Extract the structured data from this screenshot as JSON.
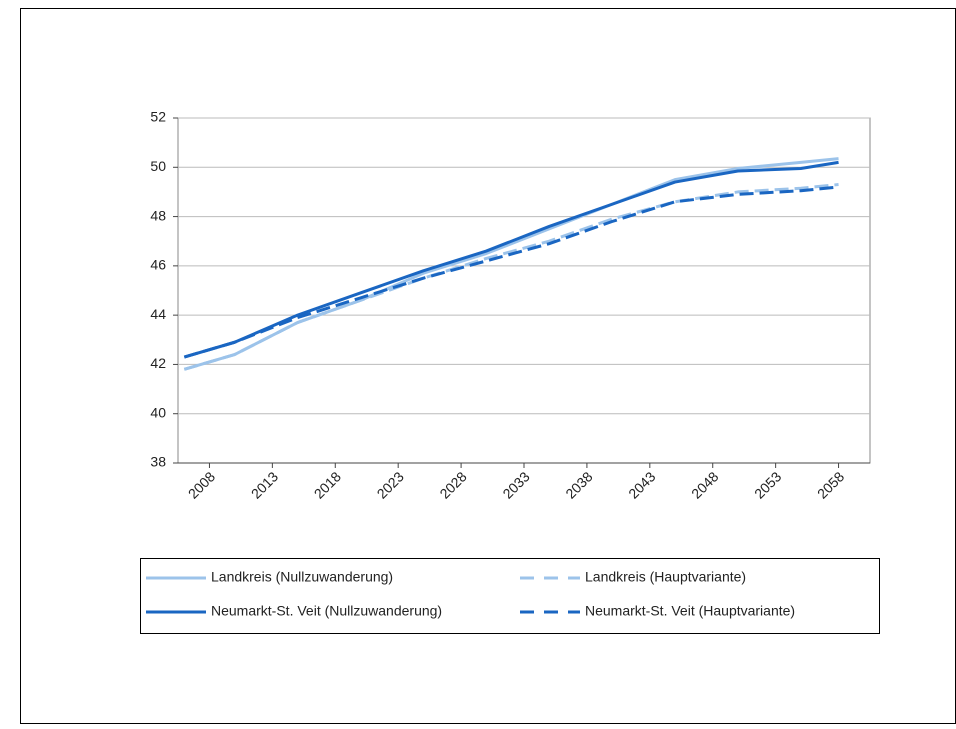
{
  "chart_data": {
    "type": "line",
    "x": [
      2006,
      2010,
      2015,
      2020,
      2025,
      2030,
      2035,
      2040,
      2045,
      2050,
      2055,
      2058
    ],
    "series": [
      {
        "name": "Landkreis (Nullzuwanderung)",
        "color": "#9cc3ea",
        "dash": false,
        "values": [
          41.8,
          42.4,
          43.7,
          44.6,
          45.7,
          46.5,
          47.5,
          48.5,
          49.5,
          49.95,
          50.2,
          50.35
        ]
      },
      {
        "name": "Landkreis (Hauptvariante)",
        "color": "#9cc3ea",
        "dash": true,
        "values": [
          41.8,
          42.4,
          43.7,
          44.6,
          45.5,
          46.3,
          47.0,
          47.9,
          48.6,
          49.0,
          49.15,
          49.3
        ]
      },
      {
        "name": "Neumarkt-St. Veit (Nullzuwanderung)",
        "color": "#1a66c2",
        "dash": false,
        "values": [
          42.3,
          42.9,
          44.0,
          44.9,
          45.8,
          46.6,
          47.6,
          48.5,
          49.4,
          49.85,
          49.95,
          50.2
        ]
      },
      {
        "name": "Neumarkt-St. Veit (Hauptvariante)",
        "color": "#1a66c2",
        "dash": true,
        "values": [
          42.3,
          42.9,
          43.9,
          44.7,
          45.5,
          46.2,
          46.9,
          47.8,
          48.6,
          48.9,
          49.05,
          49.2
        ]
      }
    ],
    "xlim": [
      2005.5,
      2060.5
    ],
    "xticks": [
      2008,
      2013,
      2018,
      2023,
      2028,
      2033,
      2038,
      2043,
      2048,
      2053,
      2058
    ],
    "ylim": [
      38,
      52
    ],
    "yticks": [
      38,
      40,
      42,
      44,
      46,
      48,
      50,
      52
    ],
    "grid": true
  }
}
